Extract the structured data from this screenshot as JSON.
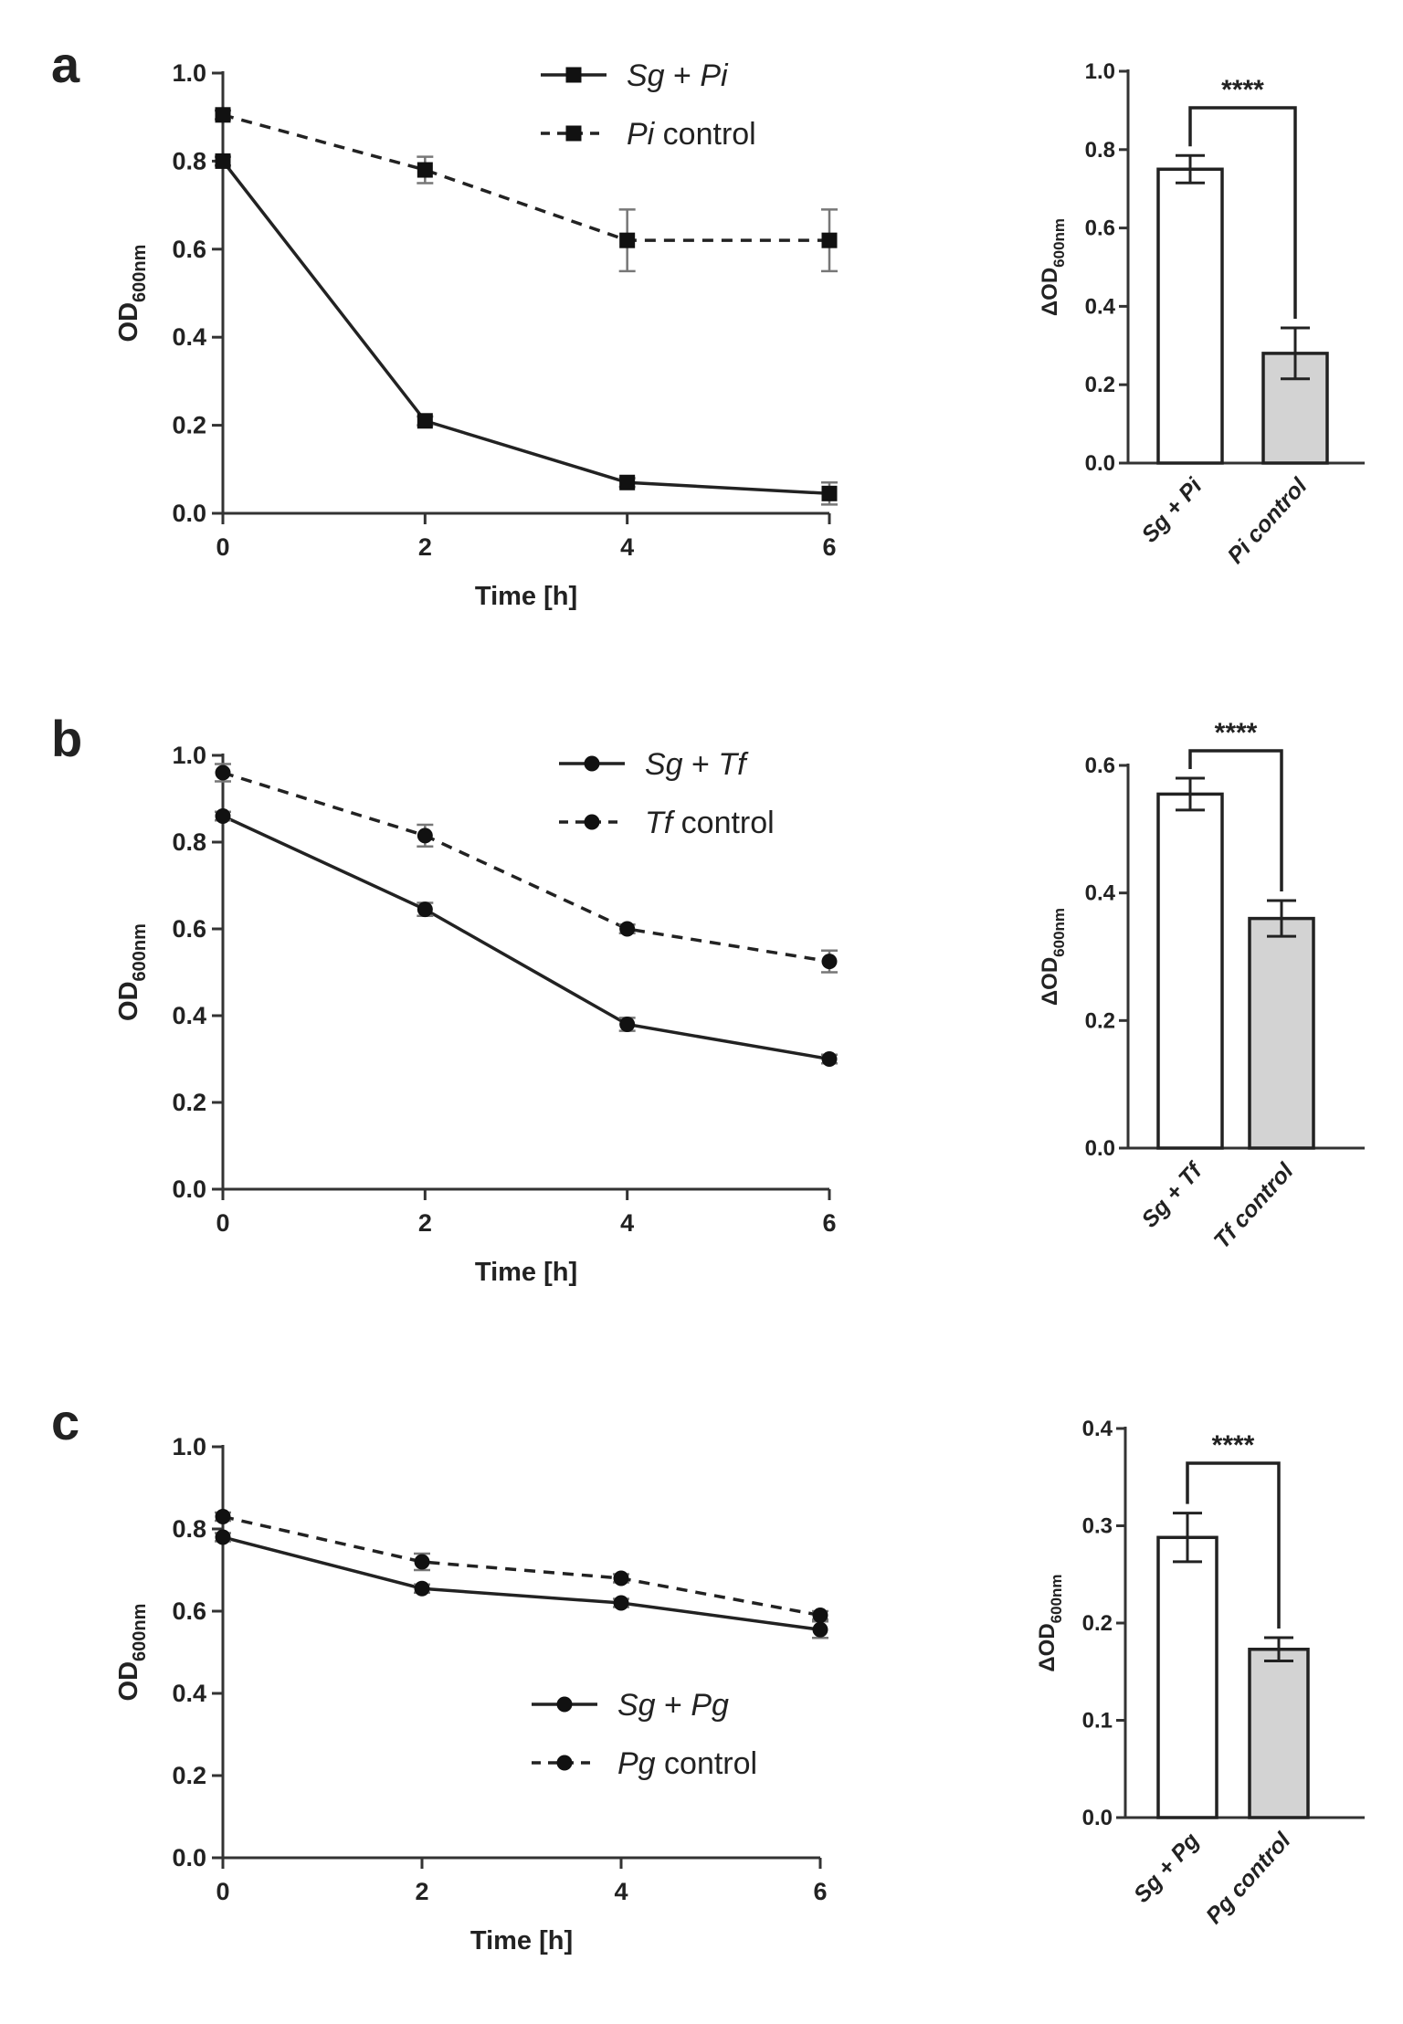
{
  "chart_data": [
    {
      "panel": "a",
      "type": "line",
      "xlabel": "Time [h]",
      "ylabel_main": "OD",
      "ylabel_sub": "600nm",
      "xlim": [
        0,
        6
      ],
      "ylim": [
        0,
        1.0
      ],
      "xticks": [
        "0",
        "2",
        "4",
        "6"
      ],
      "yticks": [
        "0.0",
        "0.2",
        "0.4",
        "0.6",
        "0.8",
        "1.0"
      ],
      "marker": "square",
      "legend_position": "top-right",
      "series": [
        {
          "name": "Sg + Pi",
          "name_italic_a": "Sg",
          "name_plain": " + ",
          "name_italic_b": "Pi",
          "style": "solid",
          "x": [
            0,
            2,
            4,
            6
          ],
          "y": [
            0.8,
            0.21,
            0.07,
            0.045
          ],
          "err": [
            0.01,
            0.01,
            0.01,
            0.025
          ]
        },
        {
          "name": "Pi control",
          "name_italic_a": "Pi",
          "name_plain": " control",
          "name_italic_b": "",
          "style": "dashed",
          "x": [
            0,
            2,
            4,
            6
          ],
          "y": [
            0.905,
            0.78,
            0.62,
            0.62
          ],
          "err": [
            0.01,
            0.03,
            0.07,
            0.07
          ]
        }
      ]
    },
    {
      "panel": "a",
      "type": "bar",
      "ylabel_main": "ΔOD",
      "ylabel_sub": "600nm",
      "ylim": [
        0,
        1.0
      ],
      "yticks": [
        "0.0",
        "0.2",
        "0.4",
        "0.6",
        "0.8",
        "1.0"
      ],
      "categories": [
        "Sg + Pi",
        "Pi control"
      ],
      "values": [
        0.75,
        0.28
      ],
      "err": [
        0.035,
        0.065
      ],
      "fills": [
        "#ffffff",
        "#d3d3d3"
      ],
      "significance": "****"
    },
    {
      "panel": "b",
      "type": "line",
      "xlabel": "Time [h]",
      "ylabel_main": "OD",
      "ylabel_sub": "600nm",
      "xlim": [
        0,
        6
      ],
      "ylim": [
        0,
        1.0
      ],
      "xticks": [
        "0",
        "2",
        "4",
        "6"
      ],
      "yticks": [
        "0.0",
        "0.2",
        "0.4",
        "0.6",
        "0.8",
        "1.0"
      ],
      "marker": "circle",
      "legend_position": "top-right",
      "series": [
        {
          "name": "Sg + Tf",
          "name_italic_a": "Sg",
          "name_plain": " + ",
          "name_italic_b": "Tf",
          "style": "solid",
          "x": [
            0,
            2,
            4,
            6
          ],
          "y": [
            0.86,
            0.645,
            0.38,
            0.3
          ],
          "err": [
            0.01,
            0.015,
            0.015,
            0.01
          ]
        },
        {
          "name": "Tf control",
          "name_italic_a": "Tf",
          "name_plain": " control",
          "name_italic_b": "",
          "style": "dashed",
          "x": [
            0,
            2,
            4,
            6
          ],
          "y": [
            0.96,
            0.815,
            0.6,
            0.525
          ],
          "err": [
            0.02,
            0.025,
            0.01,
            0.025
          ]
        }
      ]
    },
    {
      "panel": "b",
      "type": "bar",
      "ylabel_main": "ΔOD",
      "ylabel_sub": "600nm",
      "ylim": [
        0,
        0.6
      ],
      "yticks": [
        "0.0",
        "0.2",
        "0.4",
        "0.6"
      ],
      "categories": [
        "Sg + Tf",
        "Tf control"
      ],
      "values": [
        0.555,
        0.36
      ],
      "err": [
        0.025,
        0.028
      ],
      "fills": [
        "#ffffff",
        "#d3d3d3"
      ],
      "significance": "****"
    },
    {
      "panel": "c",
      "type": "line",
      "xlabel": "Time [h]",
      "ylabel_main": "OD",
      "ylabel_sub": "600nm",
      "xlim": [
        0,
        6
      ],
      "ylim": [
        0,
        1.0
      ],
      "xticks": [
        "0",
        "2",
        "4",
        "6"
      ],
      "yticks": [
        "0.0",
        "0.2",
        "0.4",
        "0.6",
        "0.8",
        "1.0"
      ],
      "marker": "circle",
      "legend_position": "bottom-right",
      "series": [
        {
          "name": "Sg + Pg",
          "name_italic_a": "Sg",
          "name_plain": " + ",
          "name_italic_b": "Pg",
          "style": "solid",
          "x": [
            0,
            2,
            4,
            6
          ],
          "y": [
            0.78,
            0.655,
            0.62,
            0.555
          ],
          "err": [
            0.01,
            0.01,
            0.01,
            0.02
          ]
        },
        {
          "name": "Pg control",
          "name_italic_a": "Pg",
          "name_plain": " control",
          "name_italic_b": "",
          "style": "dashed",
          "x": [
            0,
            2,
            4,
            6
          ],
          "y": [
            0.83,
            0.72,
            0.68,
            0.59
          ],
          "err": [
            0.01,
            0.02,
            0.01,
            0.01
          ]
        }
      ]
    },
    {
      "panel": "c",
      "type": "bar",
      "ylabel_main": "ΔOD",
      "ylabel_sub": "600nm",
      "ylim": [
        0,
        0.4
      ],
      "yticks": [
        "0.0",
        "0.1",
        "0.2",
        "0.3",
        "0.4"
      ],
      "categories": [
        "Sg + Pg",
        "Pg control"
      ],
      "values": [
        0.288,
        0.173
      ],
      "err": [
        0.025,
        0.012
      ],
      "fills": [
        "#ffffff",
        "#d3d3d3"
      ],
      "significance": "****"
    }
  ]
}
